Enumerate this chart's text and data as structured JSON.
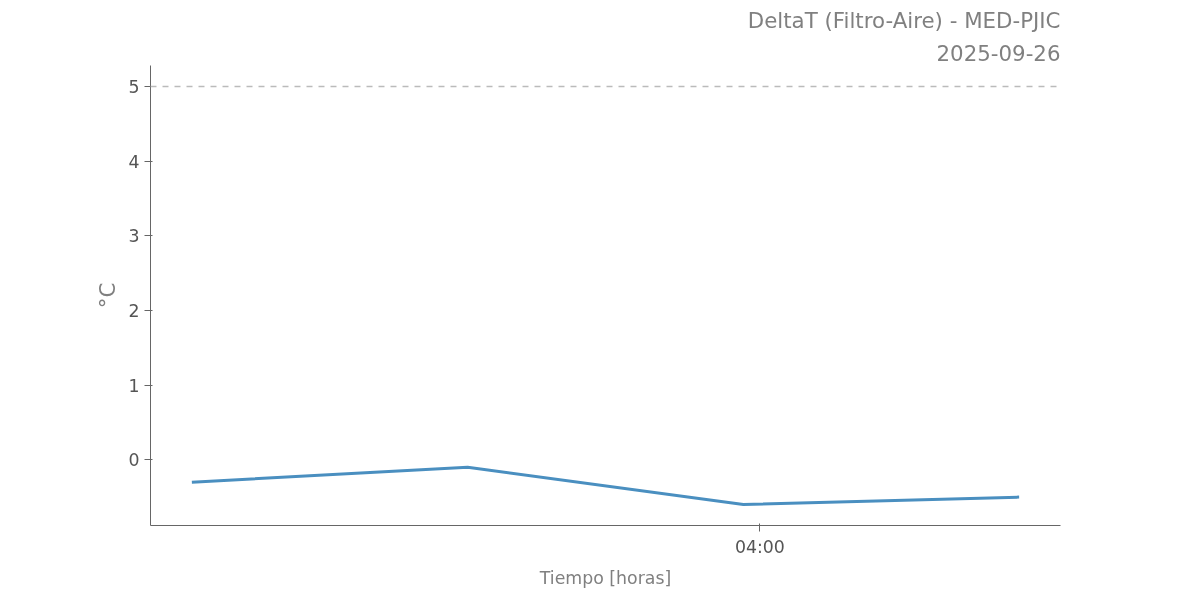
{
  "chart_data": {
    "type": "line",
    "title": "DeltaT (Filtro-Aire) - MED-PJIC",
    "subtitle": "2025-09-26",
    "xlabel": "Tiempo [horas]",
    "ylabel": "°C",
    "categories": [
      null,
      null,
      null,
      null
    ],
    "series": [
      {
        "color": "#4a8fc0",
        "values": [
          -0.3,
          -0.1,
          -0.6,
          -0.5
        ]
      }
    ],
    "ylim": [
      -0.88,
      5.28
    ],
    "yticks": [
      0,
      1,
      2,
      3,
      4,
      5
    ],
    "annotations": [
      "04:00"
    ],
    "ref_lines": [
      {
        "axis": "y",
        "value": 5,
        "color": "#bbbbbb",
        "line_style": "dashed"
      }
    ],
    "grid": false,
    "marker": "none",
    "line_style": "solid"
  }
}
